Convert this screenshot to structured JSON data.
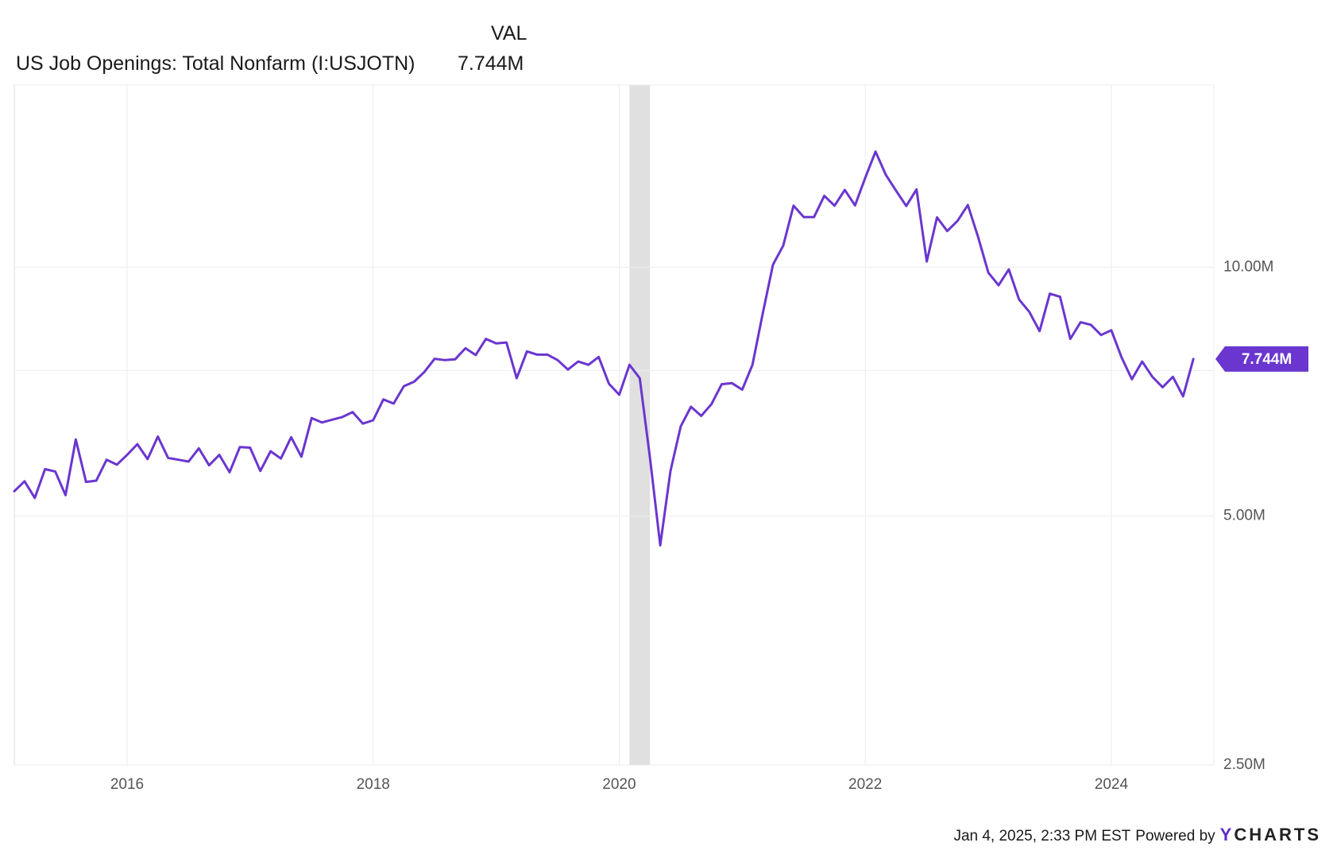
{
  "legend": {
    "column_header": "VAL",
    "series_name": "US Job Openings: Total Nonfarm (I:USJOTN)",
    "value": "7.744M"
  },
  "footer": {
    "timestamp": "Jan 4, 2025, 2:33 PM EST",
    "powered_by": "Powered by",
    "brand_first": "Y",
    "brand_rest": "CHARTS"
  },
  "colors": {
    "series": "#6a36cf",
    "recession_band": "#e0e0e0",
    "grid": "#ececec",
    "axis_text": "#555555"
  },
  "chart_data": {
    "type": "line",
    "scale": "log",
    "xlim": [
      "2015-02",
      "2024-11"
    ],
    "ylim_millions": [
      2.5,
      16.5
    ],
    "y_ticks": [
      {
        "value": 2.5,
        "label": "2.50M"
      },
      {
        "value": 5.0,
        "label": "5.00M"
      },
      {
        "value": 7.5,
        "label": ""
      },
      {
        "value": 10.0,
        "label": "10.00M"
      }
    ],
    "x_ticks": [
      {
        "value": "2016-01",
        "label": "2016"
      },
      {
        "value": "2018-01",
        "label": "2018"
      },
      {
        "value": "2020-01",
        "label": "2020"
      },
      {
        "value": "2022-01",
        "label": "2022"
      },
      {
        "value": "2024-01",
        "label": "2024"
      }
    ],
    "recession": {
      "start": "2020-02",
      "end": "2020-04"
    },
    "last_value_label": "7.744M",
    "grid": true,
    "series": [
      {
        "start": "2015-02",
        "frequency": "monthly",
        "values": [
          5.36,
          5.51,
          5.26,
          5.7,
          5.66,
          5.3,
          6.19,
          5.5,
          5.52,
          5.85,
          5.77,
          5.93,
          6.11,
          5.86,
          6.24,
          5.88,
          5.85,
          5.82,
          6.04,
          5.76,
          5.93,
          5.65,
          6.06,
          6.05,
          5.67,
          5.99,
          5.87,
          6.23,
          5.9,
          6.57,
          6.49,
          6.54,
          6.59,
          6.68,
          6.47,
          6.53,
          6.92,
          6.84,
          7.18,
          7.27,
          7.47,
          7.75,
          7.72,
          7.74,
          7.98,
          7.83,
          8.19,
          8.09,
          8.11,
          7.34,
          7.91,
          7.84,
          7.84,
          7.72,
          7.52,
          7.69,
          7.62,
          7.79,
          7.23,
          7.01,
          7.62,
          7.34,
          5.88,
          4.61,
          5.67,
          6.42,
          6.78,
          6.61,
          6.83,
          7.22,
          7.24,
          7.11,
          7.62,
          8.79,
          10.07,
          10.62,
          11.87,
          11.5,
          11.5,
          12.2,
          11.87,
          12.4,
          11.88,
          12.83,
          13.8,
          12.94,
          12.38,
          11.86,
          12.42,
          10.16,
          11.49,
          11.06,
          11.38,
          11.89,
          10.88,
          9.85,
          9.51,
          9.94,
          9.14,
          8.83,
          8.37,
          9.29,
          9.21,
          8.19,
          8.58,
          8.52,
          8.28,
          8.39,
          7.78,
          7.32,
          7.69,
          7.37,
          7.16,
          7.37,
          6.98,
          7.744
        ]
      }
    ]
  }
}
